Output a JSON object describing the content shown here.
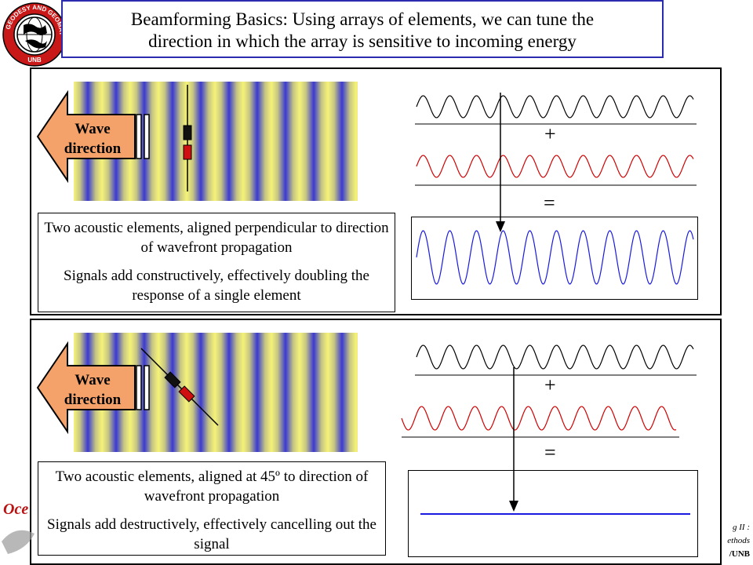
{
  "title": {
    "line1": "Beamforming Basics:  Using arrays of elements, we can tune the",
    "line2": "direction in which the array is sensitive to incoming energy"
  },
  "logo": {
    "text_top": "GEODESY AND GEOMATICS",
    "text_bottom": "UNB",
    "icon": "globe-seal-icon"
  },
  "top_panel": {
    "wave_label_1": "Wave",
    "wave_label_2": "direction",
    "caption_1": "Two acoustic elements, aligned perpendicular to direction of wavefront propagation",
    "caption_2": "Signals add constructively, effectively doubling the response of a single element",
    "plus": "+",
    "equals": "="
  },
  "bottom_panel": {
    "wave_label_1": "Wave",
    "wave_label_2": "direction",
    "caption_1": "Two acoustic elements, aligned at 45º to direction of wavefront propagation",
    "caption_2": "Signals add destructively, effectively cancelling out the signal",
    "plus": "+",
    "equals": "="
  },
  "footer": {
    "left_partial": "Oce",
    "line1": "g II :",
    "line2": "ethods",
    "line3": "/UNB"
  },
  "colors": {
    "title_border": "#2b2bb0",
    "arrow_fill": "#f4a26a",
    "wave_black": "#000000",
    "wave_red": "#d00000",
    "wave_blue": "#1a1ae0",
    "element_dark": "#111111",
    "element_red": "#d01010"
  }
}
